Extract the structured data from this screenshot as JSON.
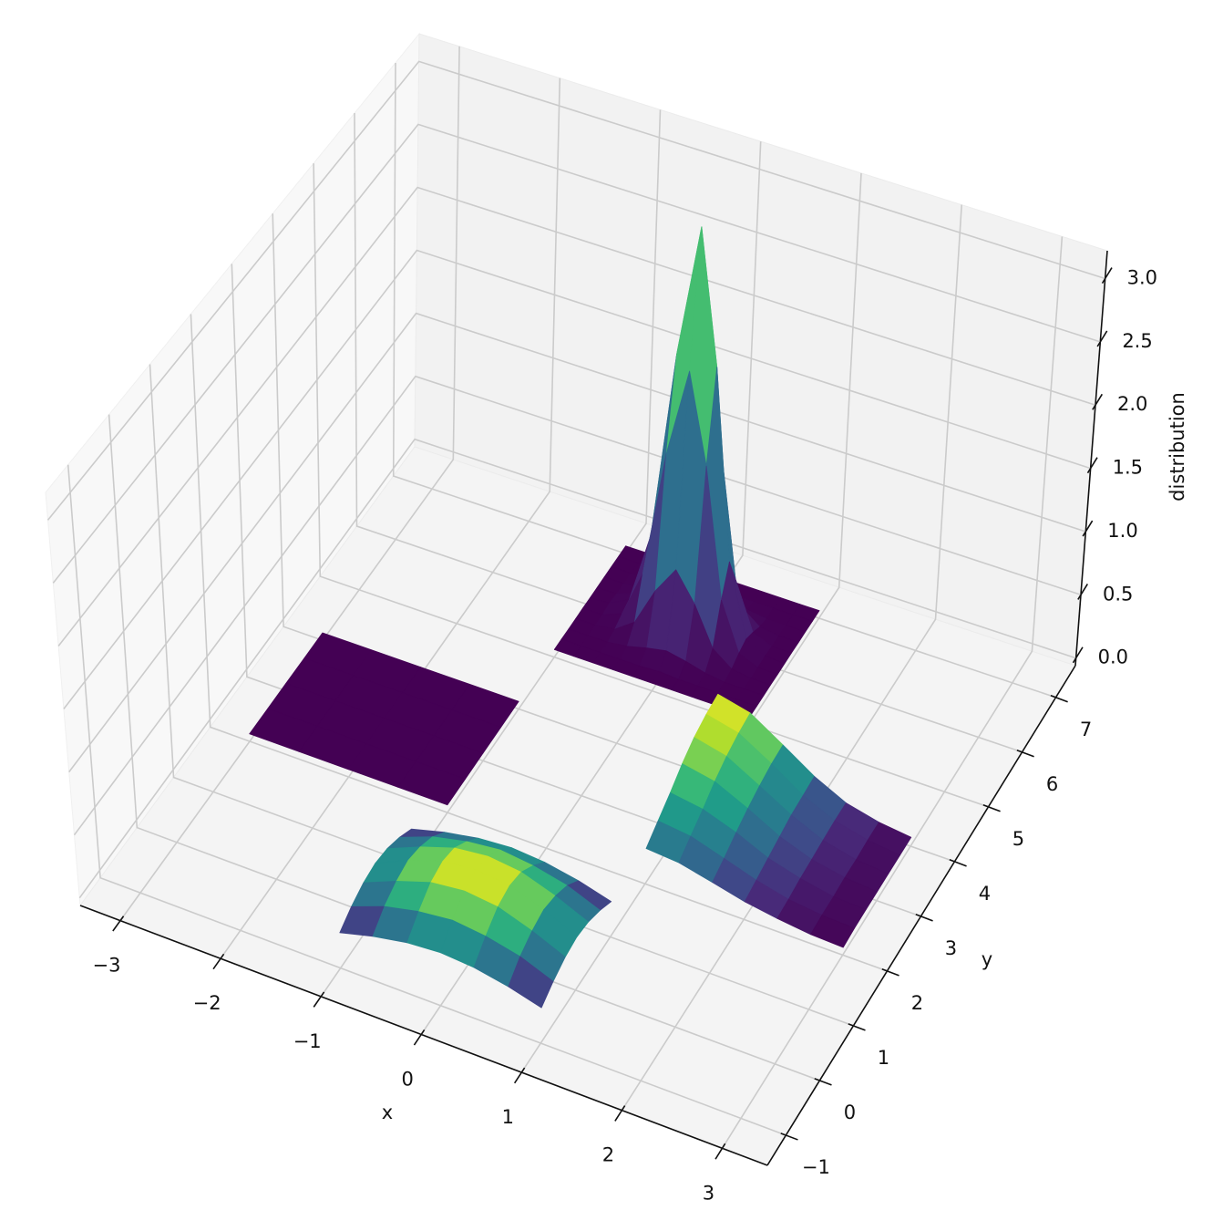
{
  "chart_data": {
    "type": "surface3d",
    "xlabel": "x",
    "ylabel": "y",
    "zlabel": "distribution",
    "xlim": [
      -3.4,
      3.45
    ],
    "ylim": [
      -1.55,
      7.58
    ],
    "zlim": [
      -0.06,
      3.22
    ],
    "xticks": [
      {
        "value": -3,
        "label": "−3"
      },
      {
        "value": -2,
        "label": "−2"
      },
      {
        "value": -1,
        "label": "−1"
      },
      0,
      1,
      2,
      3
    ],
    "yticks": [
      {
        "value": -1,
        "label": "−1"
      },
      0,
      1,
      2,
      3,
      4,
      5,
      6,
      7
    ],
    "zticks": [
      {
        "value": 0,
        "label": "0.0"
      },
      0.5,
      {
        "value": 1,
        "label": "1.0"
      },
      1.5,
      {
        "value": 2,
        "label": "2.0"
      },
      2.5,
      {
        "value": 3,
        "label": "3.0"
      }
    ],
    "grid": true,
    "cmap": "viridis",
    "surfaces": [
      {
        "x": [
          -1,
          -0.67,
          -0.33,
          0,
          0.33,
          0.67,
          1
        ],
        "y": [
          -1,
          -0.67,
          -0.33,
          0,
          0.33,
          0.67,
          1
        ],
        "z": [
          [
            0.22,
            0.29,
            0.34,
            0.36,
            0.34,
            0.29,
            0.22
          ],
          [
            0.29,
            0.39,
            0.45,
            0.48,
            0.45,
            0.39,
            0.29
          ],
          [
            0.34,
            0.45,
            0.54,
            0.57,
            0.54,
            0.45,
            0.34
          ],
          [
            0.36,
            0.48,
            0.57,
            0.6,
            0.57,
            0.48,
            0.36
          ],
          [
            0.34,
            0.45,
            0.54,
            0.57,
            0.54,
            0.45,
            0.34
          ],
          [
            0.29,
            0.39,
            0.45,
            0.48,
            0.45,
            0.39,
            0.29
          ],
          [
            0.22,
            0.29,
            0.34,
            0.36,
            0.34,
            0.29,
            0.22
          ]
        ]
      },
      {
        "x": [
          -3,
          -2.5,
          -2,
          -1.5,
          -1
        ],
        "y": [
          2,
          2.5,
          3,
          3.5,
          4
        ],
        "z": [
          [
            0,
            0,
            0,
            0,
            0
          ],
          [
            0,
            0,
            0,
            0,
            0
          ],
          [
            0,
            0,
            0,
            0,
            0
          ],
          [
            0,
            0,
            0,
            0,
            0
          ],
          [
            0,
            0,
            0,
            0,
            0
          ]
        ]
      },
      {
        "x": [
          1,
          1.33,
          1.67,
          2,
          2.33,
          2.67,
          3
        ],
        "y": [
          2,
          2.33,
          2.67,
          3,
          3.33,
          3.67,
          4
        ],
        "z": [
          [
            0.22,
            0.2,
            0.14,
            0.08,
            0.04,
            0.01,
            0
          ],
          [
            0.3,
            0.27,
            0.19,
            0.11,
            0.05,
            0.02,
            0.01
          ],
          [
            0.38,
            0.34,
            0.25,
            0.14,
            0.07,
            0.02,
            0.01
          ],
          [
            0.47,
            0.42,
            0.3,
            0.17,
            0.08,
            0.03,
            0.01
          ],
          [
            0.54,
            0.48,
            0.34,
            0.2,
            0.09,
            0.03,
            0.01
          ],
          [
            0.58,
            0.52,
            0.37,
            0.21,
            0.1,
            0.04,
            0.01
          ],
          [
            0.6,
            0.54,
            0.38,
            0.22,
            0.1,
            0.04,
            0.01
          ]
        ]
      },
      {
        "x": [
          -1,
          -0.8,
          -0.6,
          -0.4,
          -0.2,
          0,
          0.2,
          0.4,
          0.6,
          0.8,
          1
        ],
        "y": [
          5,
          5.2,
          5.4,
          5.6,
          5.8,
          6,
          6.2,
          6.4,
          6.6,
          6.8,
          7
        ],
        "z": [
          [
            0,
            0,
            0,
            0,
            0,
            0,
            0,
            0,
            0,
            0,
            0
          ],
          [
            0,
            0,
            0,
            0,
            0,
            0.01,
            0,
            0,
            0,
            0,
            0
          ],
          [
            0,
            0,
            0,
            0.02,
            0.06,
            0.09,
            0.06,
            0.02,
            0,
            0,
            0
          ],
          [
            0,
            0,
            0.02,
            0.13,
            0.43,
            0.65,
            0.43,
            0.13,
            0.02,
            0,
            0
          ],
          [
            0,
            0,
            0.06,
            0.43,
            1.44,
            2.14,
            1.44,
            0.43,
            0.06,
            0,
            0
          ],
          [
            0,
            0.01,
            0.09,
            0.65,
            2.14,
            3.2,
            2.14,
            0.65,
            0.09,
            0.01,
            0
          ],
          [
            0,
            0,
            0.06,
            0.43,
            1.44,
            2.14,
            1.44,
            0.43,
            0.06,
            0,
            0
          ],
          [
            0,
            0,
            0.02,
            0.13,
            0.43,
            0.65,
            0.43,
            0.13,
            0.02,
            0,
            0
          ],
          [
            0,
            0,
            0,
            0.02,
            0.06,
            0.09,
            0.06,
            0.02,
            0,
            0,
            0
          ],
          [
            0,
            0,
            0,
            0,
            0,
            0.01,
            0,
            0,
            0,
            0,
            0
          ],
          [
            0,
            0,
            0,
            0,
            0,
            0,
            0,
            0,
            0,
            0,
            0
          ]
        ]
      }
    ]
  }
}
